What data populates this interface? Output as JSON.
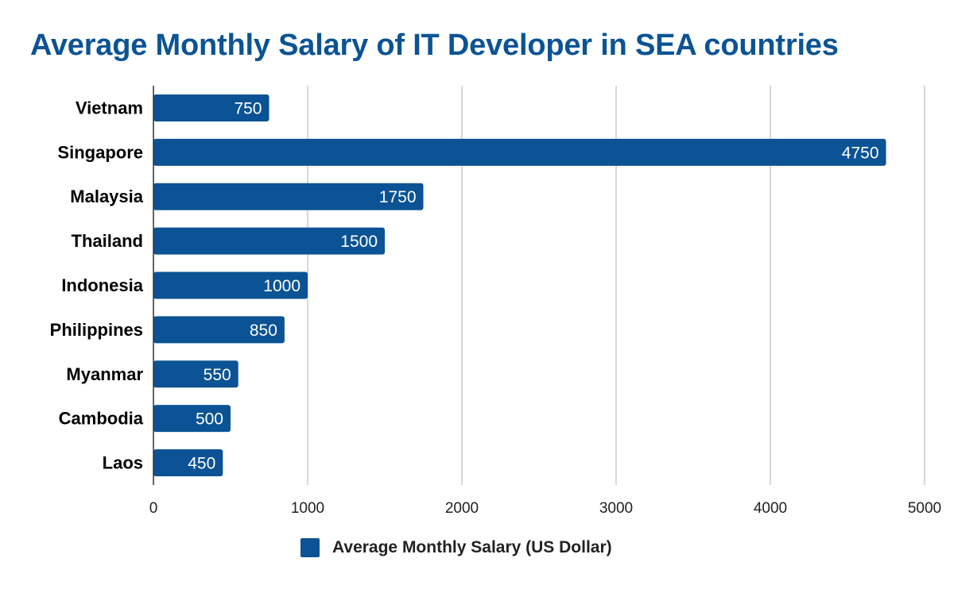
{
  "chart_data": {
    "type": "bar",
    "orientation": "horizontal",
    "title": "Average Monthly Salary of IT Developer in SEA countries",
    "categories": [
      "Vietnam",
      "Singapore",
      "Malaysia",
      "Thailand",
      "Indonesia",
      "Philippines",
      "Myanmar",
      "Cambodia",
      "Laos"
    ],
    "series": [
      {
        "name": "Average Monthly Salary (US Dollar)",
        "values": [
          750,
          4750,
          1750,
          1500,
          1000,
          850,
          550,
          500,
          450
        ]
      }
    ],
    "xlim": [
      0,
      5000
    ],
    "xticks": [
      0,
      1000,
      2000,
      3000,
      4000,
      5000
    ],
    "grid": "vertical",
    "legend_position": "bottom",
    "bar_color": "#0b5394",
    "title_color": "#0b5394"
  }
}
